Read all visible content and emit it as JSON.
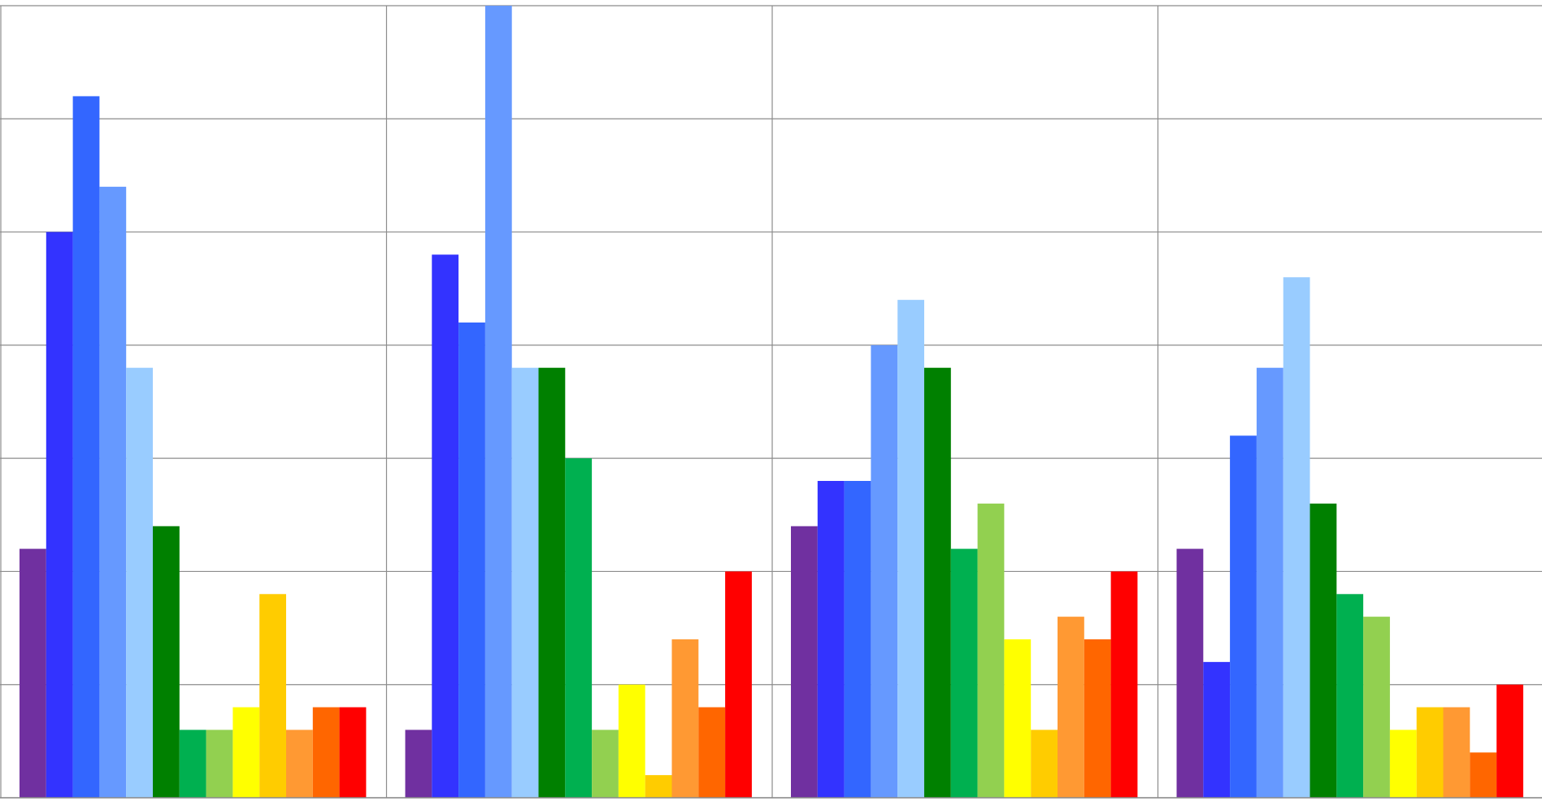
{
  "chart_data": {
    "type": "bar",
    "title": "",
    "xlabel": "",
    "ylabel": "",
    "categories": [
      "",
      "",
      "",
      ""
    ],
    "ylim": [
      0,
      35
    ],
    "grid": true,
    "legend": "none",
    "series": [
      {
        "color": "#7030A0",
        "values": [
          11,
          3,
          12,
          11
        ]
      },
      {
        "color": "#3333FF",
        "values": [
          25,
          24,
          14,
          6
        ]
      },
      {
        "color": "#3366FF",
        "values": [
          31,
          21,
          14,
          16
        ]
      },
      {
        "color": "#6699FF",
        "values": [
          27,
          35,
          20,
          19
        ]
      },
      {
        "color": "#99CCFF",
        "values": [
          19,
          19,
          22,
          23
        ]
      },
      {
        "color": "#008000",
        "values": [
          12,
          19,
          19,
          13
        ]
      },
      {
        "color": "#00B050",
        "values": [
          3,
          15,
          11,
          9
        ]
      },
      {
        "color": "#92D050",
        "values": [
          3,
          3,
          13,
          8
        ]
      },
      {
        "color": "#FFFF00",
        "values": [
          4,
          5,
          7,
          3
        ]
      },
      {
        "color": "#FFCC00",
        "values": [
          9,
          1,
          3,
          4
        ]
      },
      {
        "color": "#FF9933",
        "values": [
          3,
          7,
          8,
          4
        ]
      },
      {
        "color": "#FF6600",
        "values": [
          4,
          4,
          7,
          2
        ]
      },
      {
        "color": "#FF0000",
        "values": [
          4,
          10,
          10,
          5
        ]
      }
    ]
  }
}
